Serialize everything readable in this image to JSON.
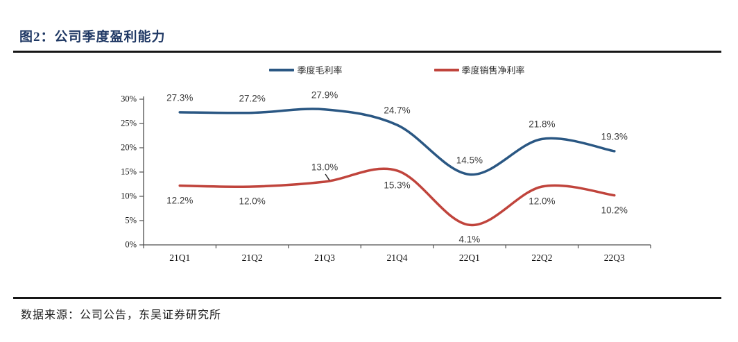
{
  "figure": {
    "title": "图2：公司季度盈利能力",
    "source": "数据来源：公司公告，东吴证券研究所"
  },
  "chart_data": {
    "type": "line",
    "title": "公司季度盈利能力",
    "categories": [
      "21Q1",
      "21Q2",
      "21Q3",
      "21Q4",
      "22Q1",
      "22Q2",
      "22Q3"
    ],
    "series": [
      {
        "name": "季度毛利率",
        "color": "#2A5783",
        "values": [
          27.3,
          27.2,
          27.9,
          24.7,
          14.5,
          21.8,
          19.3
        ],
        "labels": [
          "27.3%",
          "27.2%",
          "27.9%",
          "24.7%",
          "14.5%",
          "21.8%",
          "19.3%"
        ],
        "label_side": "above"
      },
      {
        "name": "季度销售净利率",
        "color": "#C0443C",
        "values": [
          12.2,
          12.0,
          13.0,
          15.3,
          4.1,
          12.0,
          10.2
        ],
        "labels": [
          "12.2%",
          "12.0%",
          "13.0%",
          "15.3%",
          "4.1%",
          "12.0%",
          "10.2%"
        ],
        "label_side": "below",
        "label_overrides": {
          "2": {
            "side": "above",
            "callout": true
          }
        }
      }
    ],
    "xlabel": "",
    "ylabel": "",
    "ylim": [
      0,
      30
    ],
    "yticks": [
      0,
      5,
      10,
      15,
      20,
      25,
      30
    ],
    "ytick_labels": [
      "0%",
      "5%",
      "10%",
      "15%",
      "20%",
      "25%",
      "30%"
    ],
    "grid": false,
    "smooth": true,
    "legend_position": "top-center",
    "line_width": 3.5
  },
  "style": {
    "axis_color": "#4d4d4d",
    "label_text_color": "#3c3c3c"
  }
}
